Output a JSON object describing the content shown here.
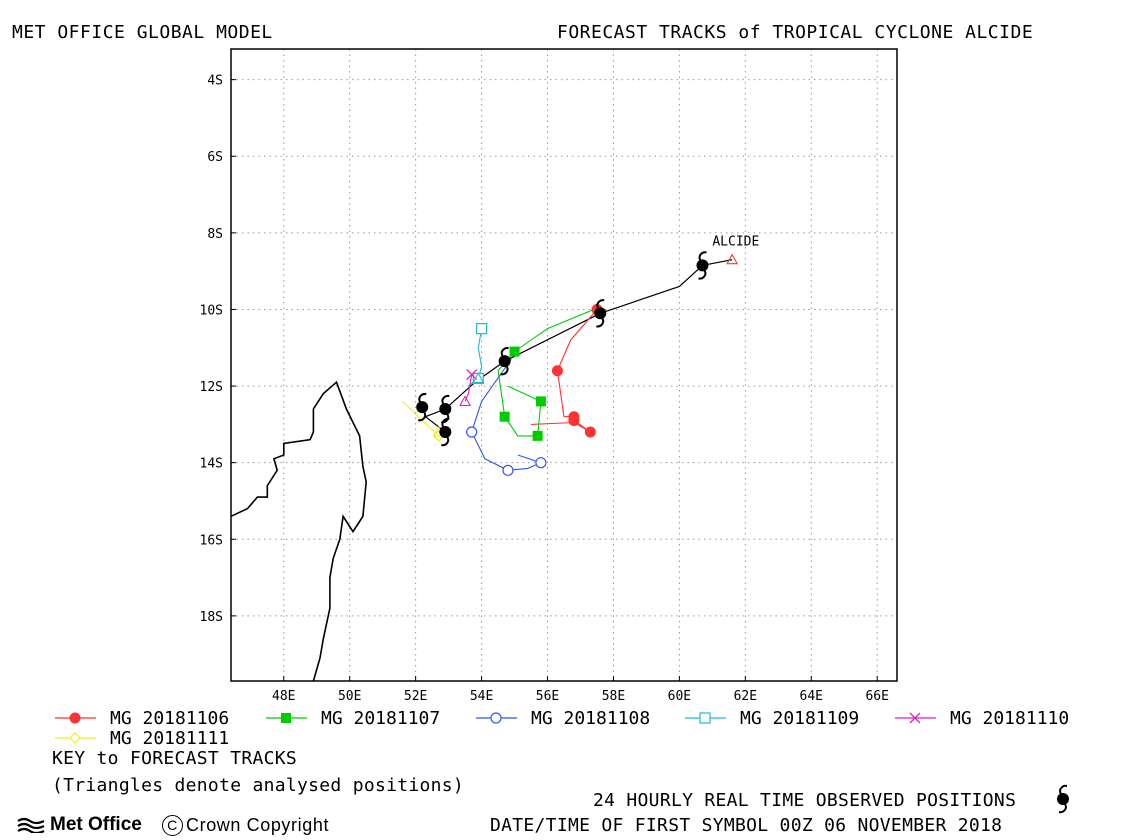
{
  "header": {
    "left": "MET OFFICE GLOBAL MODEL",
    "right": "FORECAST TRACKS of TROPICAL CYCLONE ALCIDE"
  },
  "chart_data": {
    "type": "line",
    "title": "FORECAST TRACKS of TROPICAL CYCLONE ALCIDE",
    "xlabel": "",
    "ylabel": "",
    "x_axis": "longitude (degrees east)",
    "y_axis": "latitude (degrees south)",
    "xlim": [
      46.4,
      66.6
    ],
    "ylim_south": [
      3.2,
      19.7
    ],
    "grid": true,
    "x_ticks": [
      48,
      50,
      52,
      54,
      56,
      58,
      60,
      62,
      64,
      66
    ],
    "x_tick_labels": [
      "48E",
      "50E",
      "52E",
      "54E",
      "56E",
      "58E",
      "60E",
      "62E",
      "64E",
      "66E"
    ],
    "y_ticks": [
      4,
      6,
      8,
      10,
      12,
      14,
      16,
      18
    ],
    "y_tick_labels": [
      "4S",
      "6S",
      "8S",
      "10S",
      "12S",
      "14S",
      "16S",
      "18S"
    ],
    "storm_label": {
      "text": "ALCIDE",
      "lon": 61.0,
      "lat": 8.2
    },
    "observed_track": [
      [
        61.6,
        8.7
      ],
      [
        60.7,
        8.85
      ],
      [
        60.0,
        9.4
      ],
      [
        57.6,
        10.1
      ],
      [
        54.7,
        11.35
      ],
      [
        53.8,
        11.9
      ],
      [
        52.9,
        12.6
      ],
      [
        52.3,
        12.8
      ],
      [
        52.9,
        13.2
      ]
    ],
    "observed_symbols": [
      [
        60.7,
        8.85
      ],
      [
        57.6,
        10.1
      ],
      [
        54.7,
        11.35
      ],
      [
        52.9,
        12.6
      ],
      [
        52.2,
        12.55
      ],
      [
        52.9,
        13.2
      ]
    ],
    "series": [
      {
        "name": "MG 20181106",
        "color": "#ff3333",
        "marker": "filled-circle",
        "points": [
          [
            57.5,
            10.0
          ],
          [
            56.7,
            10.8
          ],
          [
            56.3,
            11.6
          ],
          [
            56.5,
            12.8
          ],
          [
            56.8,
            12.8
          ],
          [
            56.8,
            12.9
          ],
          [
            57.3,
            13.2
          ],
          [
            56.8,
            12.95
          ],
          [
            55.5,
            13.0
          ]
        ],
        "markers": [
          [
            57.5,
            10.0
          ],
          [
            56.3,
            11.6
          ],
          [
            56.8,
            12.8
          ],
          [
            56.8,
            12.9
          ],
          [
            57.3,
            13.2
          ]
        ]
      },
      {
        "name": "MG 20181107",
        "color": "#00cc00",
        "marker": "filled-square",
        "points": [
          [
            57.4,
            10.0
          ],
          [
            56.0,
            10.5
          ],
          [
            55.0,
            11.1
          ],
          [
            54.5,
            11.6
          ],
          [
            54.7,
            12.8
          ],
          [
            55.1,
            13.3
          ],
          [
            55.7,
            13.3
          ],
          [
            55.8,
            12.4
          ],
          [
            54.8,
            12.0
          ]
        ],
        "markers": [
          [
            55.0,
            11.1
          ],
          [
            54.7,
            12.8
          ],
          [
            55.7,
            13.3
          ],
          [
            55.8,
            12.4
          ]
        ]
      },
      {
        "name": "MG 20181108",
        "color": "#3355ee",
        "marker": "open-circle",
        "points": [
          [
            54.9,
            11.3
          ],
          [
            54.0,
            12.4
          ],
          [
            53.7,
            13.2
          ],
          [
            54.1,
            13.9
          ],
          [
            54.8,
            14.2
          ],
          [
            55.4,
            14.15
          ],
          [
            55.8,
            14.0
          ],
          [
            55.1,
            13.8
          ]
        ],
        "markers": [
          [
            53.7,
            13.2
          ],
          [
            54.8,
            14.2
          ],
          [
            55.8,
            14.0
          ]
        ]
      },
      {
        "name": "MG 20181109",
        "color": "#22bbcc",
        "marker": "open-square",
        "points": [
          [
            54.0,
            10.5
          ],
          [
            53.9,
            11.0
          ],
          [
            54.0,
            11.5
          ],
          [
            53.9,
            11.8
          ],
          [
            53.6,
            12.0
          ]
        ],
        "markers": [
          [
            54.0,
            10.5
          ],
          [
            53.9,
            11.8
          ]
        ]
      },
      {
        "name": "MG 20181110",
        "color": "#dd22bb",
        "marker": "cross",
        "points": [
          [
            53.7,
            11.7
          ],
          [
            53.6,
            12.2
          ],
          [
            53.5,
            12.4
          ]
        ],
        "markers": [
          [
            53.7,
            11.7
          ]
        ]
      },
      {
        "name": "MG 20181111",
        "color": "#eeee22",
        "marker": "open-diamond",
        "points": [
          [
            51.6,
            12.4
          ],
          [
            52.2,
            12.9
          ],
          [
            52.7,
            13.3
          ],
          [
            53.0,
            13.2
          ]
        ],
        "markers": [
          [
            52.7,
            13.3
          ]
        ]
      }
    ],
    "analysed_positions": [
      {
        "series": 0,
        "lon": 61.6,
        "lat": 8.7
      },
      {
        "series": 4,
        "lon": 53.5,
        "lat": 12.4
      },
      {
        "series": 3,
        "lon": 53.9,
        "lat": 11.8
      },
      {
        "series": 5,
        "lon": 52.7,
        "lat": 13.2
      }
    ],
    "coastline": [
      [
        46.4,
        15.4
      ],
      [
        46.9,
        15.2
      ],
      [
        47.2,
        14.9
      ],
      [
        47.5,
        14.9
      ],
      [
        47.5,
        14.6
      ],
      [
        47.8,
        14.2
      ],
      [
        47.7,
        13.9
      ],
      [
        48.0,
        13.8
      ],
      [
        48.0,
        13.5
      ],
      [
        48.8,
        13.4
      ],
      [
        48.9,
        13.2
      ],
      [
        48.9,
        12.6
      ],
      [
        49.2,
        12.2
      ],
      [
        49.6,
        11.9
      ],
      [
        49.9,
        12.6
      ],
      [
        50.3,
        13.3
      ],
      [
        50.4,
        14.1
      ],
      [
        50.5,
        14.5
      ],
      [
        50.4,
        15.4
      ],
      [
        50.1,
        15.8
      ],
      [
        49.8,
        15.4
      ],
      [
        49.7,
        16.0
      ],
      [
        49.5,
        16.5
      ],
      [
        49.4,
        17.0
      ],
      [
        49.4,
        17.8
      ],
      [
        49.2,
        18.6
      ],
      [
        49.1,
        19.1
      ],
      [
        48.9,
        19.7
      ]
    ]
  },
  "legend": {
    "entries": [
      "MG 20181106",
      "MG 20181107",
      "MG 20181108",
      "MG 20181109",
      "MG 20181110",
      "MG 20181111"
    ]
  },
  "footer": {
    "key_title": "KEY to FORECAST TRACKS",
    "key_note": "(Triangles denote analysed positions)",
    "observed_note": "24 HOURLY REAL TIME OBSERVED POSITIONS",
    "date_note": "DATE/TIME OF FIRST SYMBOL 00Z 06 NOVEMBER 2018",
    "logo_text": "Met Office",
    "copyright": "Crown Copyright"
  }
}
